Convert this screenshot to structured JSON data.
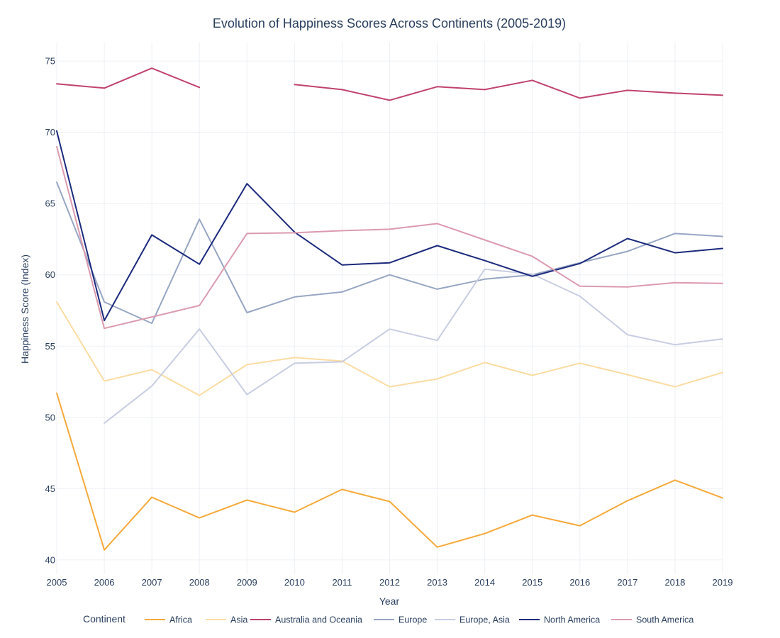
{
  "chart_data": {
    "type": "line",
    "title": "Evolution of Happiness Scores Across Continents (2005-2019)",
    "xlabel": "Year",
    "ylabel": "Happiness Score (Index)",
    "x": [
      2005,
      2006,
      2007,
      2008,
      2009,
      2010,
      2011,
      2012,
      2013,
      2014,
      2015,
      2016,
      2017,
      2018,
      2019
    ],
    "xlim": [
      2005,
      2019
    ],
    "ylim": [
      39,
      76.3
    ],
    "yticks": [
      40,
      45,
      50,
      55,
      60,
      65,
      70,
      75
    ],
    "grid": true,
    "legend_title": "Continent",
    "legend_position": "bottom",
    "series": [
      {
        "name": "Africa",
        "color": "#f5a93b",
        "values": [
          51.7,
          40.7,
          44.4,
          42.95,
          44.2,
          43.35,
          44.95,
          44.1,
          40.9,
          41.85,
          43.15,
          42.4,
          44.15,
          45.6,
          44.35
        ]
      },
      {
        "name": "Asia",
        "color": "#fbdca3",
        "values": [
          58.1,
          52.55,
          53.35,
          51.55,
          53.7,
          54.2,
          53.95,
          52.15,
          52.7,
          53.85,
          52.95,
          53.8,
          53.0,
          52.15,
          53.15
        ]
      },
      {
        "name": "Australia and Oceania",
        "color": "#c0426e",
        "values": [
          73.4,
          73.1,
          74.5,
          73.15,
          null,
          73.35,
          73.0,
          72.25,
          73.2,
          73.0,
          73.65,
          72.4,
          72.95,
          72.75,
          72.6
        ]
      },
      {
        "name": "Europe",
        "color": "#97a6c3",
        "values": [
          66.5,
          58.1,
          56.6,
          63.9,
          57.35,
          58.45,
          58.8,
          60.0,
          59.0,
          59.7,
          60.0,
          60.85,
          61.65,
          62.9,
          62.7
        ]
      },
      {
        "name": "Europe, Asia",
        "color": "#c8cde2",
        "values": [
          null,
          49.6,
          52.2,
          56.2,
          51.6,
          53.8,
          53.9,
          56.2,
          55.4,
          60.4,
          60.05,
          58.5,
          55.8,
          55.1,
          55.5
        ]
      },
      {
        "name": "North America",
        "color": "#1c2a7c",
        "values": [
          70.1,
          56.8,
          62.8,
          60.75,
          66.4,
          63.0,
          60.7,
          60.85,
          62.05,
          61.0,
          59.9,
          60.8,
          62.55,
          61.55,
          61.85
        ]
      },
      {
        "name": "South America",
        "color": "#dc9aae",
        "values": [
          69.0,
          56.25,
          57.05,
          57.85,
          62.9,
          62.95,
          63.1,
          63.2,
          63.6,
          62.45,
          61.3,
          59.2,
          59.15,
          59.45,
          59.4
        ]
      }
    ]
  }
}
